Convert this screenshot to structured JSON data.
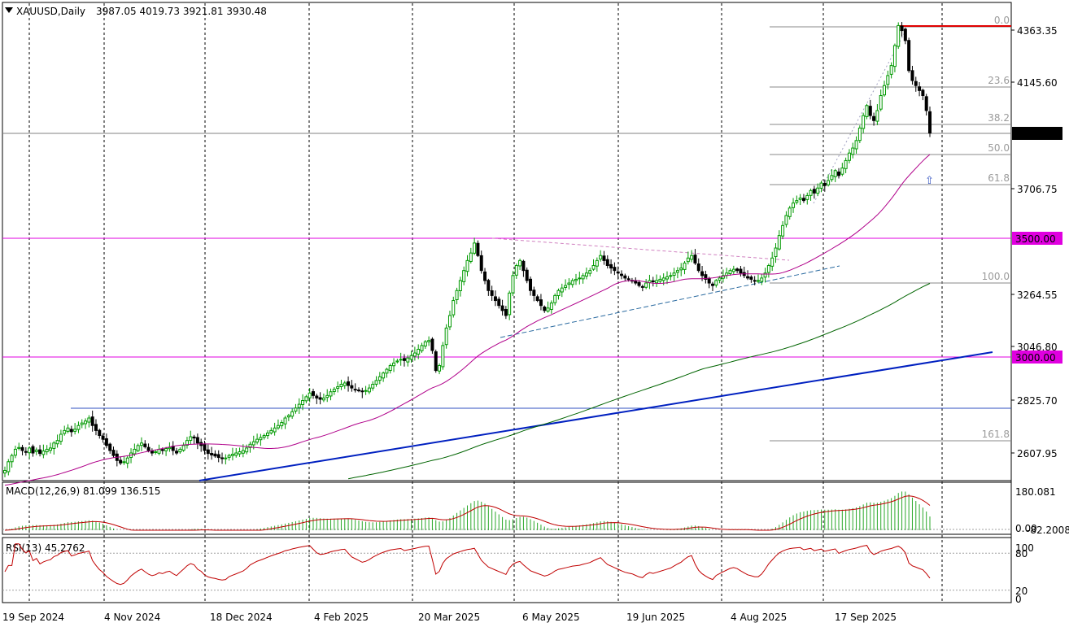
{
  "header": {
    "symbol": "XAUUSD,Daily",
    "ohlc": "3987.05 4019.73 3921.81 3930.48"
  },
  "macd_label": "MACD(12,26,9) 81.099 136.515",
  "rsi_label": "RSI(13) 45.2762",
  "colors": {
    "background": "#ffffff",
    "bull_candle": "#009900",
    "bear_candle": "#000000",
    "ma50": "#b0008a",
    "ma200": "#006400",
    "trendline_blue": "#0020c0",
    "level_magenta": "#e000e0",
    "resistance_red": "#e00000",
    "macd_hist": "#2aa82a",
    "macd_signal": "#c00000",
    "rsi_line": "#c00000",
    "fib_line": "#8a8a8a"
  },
  "chart_data": [
    {
      "type": "candlestick",
      "title": "XAUUSD,Daily",
      "y_ticks": [
        "4363.35",
        "4145.60",
        "3706.75",
        "3264.55",
        "3046.80",
        "2825.70",
        "2607.95"
      ],
      "y_range": [
        2500,
        4420
      ],
      "x_ticks": [
        "19 Sep 2024",
        "4 Nov 2024",
        "18 Dec 2024",
        "4 Feb 2025",
        "20 Mar 2025",
        "6 May 2025",
        "19 Jun 2025",
        "4 Aug 2025",
        "17 Sep 2025"
      ],
      "current_price": "3930.48",
      "price_levels": [
        {
          "value": 3500.0,
          "label": "3500.00"
        },
        {
          "value": 3000.0,
          "label": "3000.00"
        }
      ],
      "fibonacci": [
        {
          "level": "0.0",
          "price": 4380
        },
        {
          "level": "23.6",
          "price": 4135
        },
        {
          "level": "38.2",
          "price": 3985
        },
        {
          "level": "50.0",
          "price": 3862
        },
        {
          "level": "61.8",
          "price": 3740
        },
        {
          "level": "100.0",
          "price": 3300
        },
        {
          "level": "161.8",
          "price": 2660
        }
      ],
      "grid": true,
      "series_close": [
        2580,
        2615,
        2640,
        2665,
        2672,
        2660,
        2655,
        2670,
        2650,
        2662,
        2648,
        2658,
        2665,
        2670,
        2690,
        2700,
        2725,
        2740,
        2750,
        2735,
        2745,
        2760,
        2770,
        2778,
        2790,
        2760,
        2740,
        2720,
        2705,
        2680,
        2660,
        2640,
        2620,
        2610,
        2615,
        2630,
        2650,
        2665,
        2680,
        2690,
        2675,
        2660,
        2650,
        2655,
        2665,
        2660,
        2668,
        2672,
        2660,
        2650,
        2665,
        2680,
        2700,
        2715,
        2710,
        2690,
        2680,
        2660,
        2648,
        2642,
        2638,
        2632,
        2628,
        2630,
        2640,
        2645,
        2650,
        2655,
        2660,
        2670,
        2685,
        2695,
        2705,
        2712,
        2720,
        2730,
        2740,
        2750,
        2760,
        2772,
        2790,
        2800,
        2815,
        2830,
        2845,
        2860,
        2875,
        2890,
        2880,
        2870,
        2865,
        2870,
        2880,
        2895,
        2905,
        2915,
        2925,
        2930,
        2920,
        2910,
        2905,
        2900,
        2895,
        2900,
        2910,
        2925,
        2940,
        2955,
        2970,
        2985,
        3000,
        3010,
        3018,
        3025,
        3020,
        3030,
        3040,
        3050,
        3065,
        3080,
        3095,
        3100,
        3060,
        2980,
        3000,
        3080,
        3150,
        3200,
        3260,
        3300,
        3340,
        3380,
        3420,
        3450,
        3490,
        3440,
        3380,
        3340,
        3300,
        3280,
        3260,
        3240,
        3220,
        3200,
        3290,
        3360,
        3400,
        3420,
        3380,
        3340,
        3300,
        3280,
        3260,
        3240,
        3220,
        3230,
        3250,
        3280,
        3300,
        3310,
        3320,
        3330,
        3340,
        3345,
        3350,
        3360,
        3370,
        3380,
        3400,
        3420,
        3440,
        3420,
        3400,
        3390,
        3380,
        3370,
        3360,
        3350,
        3345,
        3340,
        3330,
        3320,
        3315,
        3330,
        3340,
        3335,
        3340,
        3345,
        3350,
        3355,
        3360,
        3370,
        3380,
        3390,
        3410,
        3430,
        3440,
        3410,
        3380,
        3360,
        3345,
        3330,
        3320,
        3340,
        3350,
        3360,
        3370,
        3380,
        3385,
        3380,
        3370,
        3360,
        3350,
        3345,
        3340,
        3340,
        3350,
        3370,
        3400,
        3430,
        3470,
        3520,
        3560,
        3600,
        3630,
        3650,
        3660,
        3670,
        3660,
        3680,
        3700,
        3690,
        3710,
        3730,
        3720,
        3740,
        3760,
        3780,
        3760,
        3790,
        3820,
        3850,
        3870,
        3900,
        3950,
        4000,
        4040,
        4000,
        3980,
        4020,
        4080,
        4120,
        4160,
        4200,
        4280,
        4360,
        4340,
        4300,
        4180,
        4140,
        4120,
        4100,
        4080,
        4020,
        3930
      ],
      "ma50_start": 2520,
      "ma200_start": 2380
    },
    {
      "type": "bar",
      "title": "MACD(12,26,9) 81.099 136.515",
      "y_ticks": [
        "180.081",
        "0.00",
        "-82.2008"
      ],
      "y_range": [
        -82.2,
        180.1
      ]
    },
    {
      "type": "line",
      "title": "RSI(13) 45.2762",
      "y_ticks": [
        "100",
        "80",
        "20",
        "0"
      ],
      "y_range": [
        0,
        100
      ],
      "levels": [
        80,
        20
      ]
    }
  ]
}
